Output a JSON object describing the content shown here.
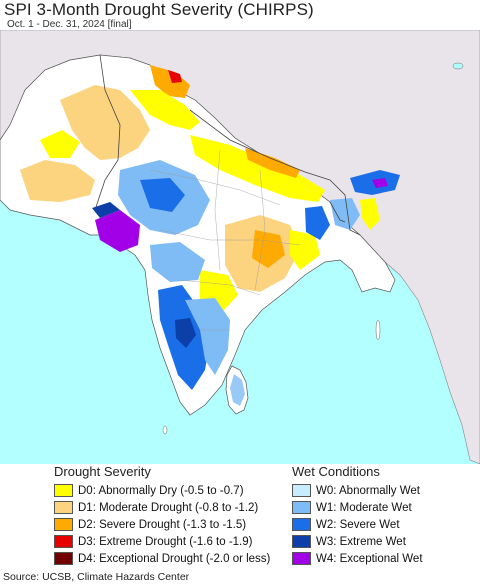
{
  "title": "SPI 3-Month Drought Severity (CHIRPS)",
  "subtitle": "Oct. 1 - Dec. 31, 2024 [final]",
  "source": "Source: UCSB, Climate Hazards Center",
  "colors": {
    "land": "#ffffff",
    "outside_land": "#e8e4ea",
    "water": "#b3ffff",
    "border": "#555555"
  },
  "legend": {
    "drought": {
      "heading": "Drought Severity",
      "items": [
        {
          "label": "D0: Abnormally Dry (-0.5 to -0.7)",
          "color": "#ffff00"
        },
        {
          "label": "D1: Moderate Drought (-0.8 to -1.2)",
          "color": "#fcd37f"
        },
        {
          "label": "D2: Severe Drought (-1.3 to -1.5)",
          "color": "#ffaa00"
        },
        {
          "label": "D3: Extreme Drought (-1.6 to -1.9)",
          "color": "#e60000"
        },
        {
          "label": "D4: Exceptional Drought (-2.0 or less)",
          "color": "#730000"
        }
      ]
    },
    "wet": {
      "heading": "Wet Conditions",
      "items": [
        {
          "label": "W0: Abnormally Wet",
          "color": "#c7ecff"
        },
        {
          "label": "W1: Moderate Wet",
          "color": "#7fbcf5"
        },
        {
          "label": "W2: Severe Wet",
          "color": "#1a6ee8"
        },
        {
          "label": "W3: Extreme Wet",
          "color": "#0c3fa8"
        },
        {
          "label": "W4: Exceptional Wet",
          "color": "#a200e6"
        }
      ]
    }
  }
}
